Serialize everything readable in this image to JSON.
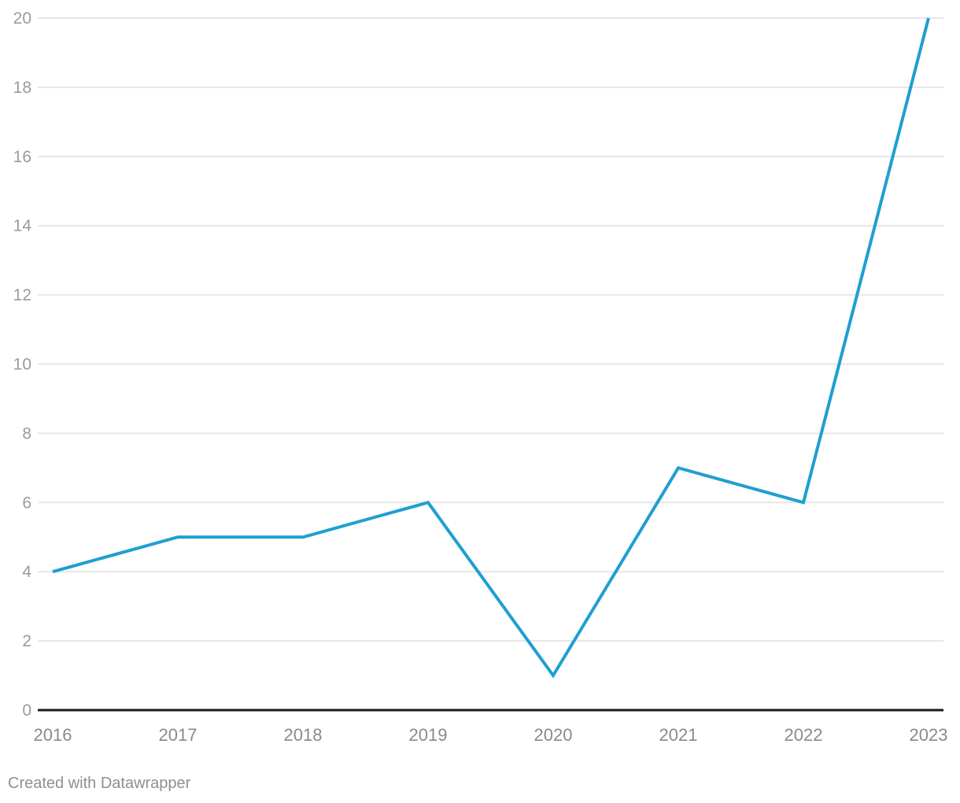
{
  "chart_data": {
    "type": "line",
    "categories": [
      "2016",
      "2017",
      "2018",
      "2019",
      "2020",
      "2021",
      "2022",
      "2023"
    ],
    "series": [
      {
        "name": "value",
        "values": [
          4,
          5,
          5,
          6,
          1,
          7,
          6,
          20
        ]
      }
    ],
    "title": "",
    "xlabel": "",
    "ylabel": "",
    "ylim": [
      0,
      20
    ],
    "yticks": [
      0,
      2,
      4,
      6,
      8,
      10,
      12,
      14,
      16,
      18,
      20
    ],
    "grid": "horizontal",
    "legend": "none",
    "colors": {
      "line": "#1f9fd1",
      "gridline": "#e6e6e6",
      "baseline": "#1a1a1a",
      "y_label": "#9b9b9b",
      "x_label": "#8a8a8a",
      "credit": "#8f8f8f",
      "background": "#ffffff"
    }
  },
  "footer": {
    "credit": "Created with Datawrapper"
  }
}
